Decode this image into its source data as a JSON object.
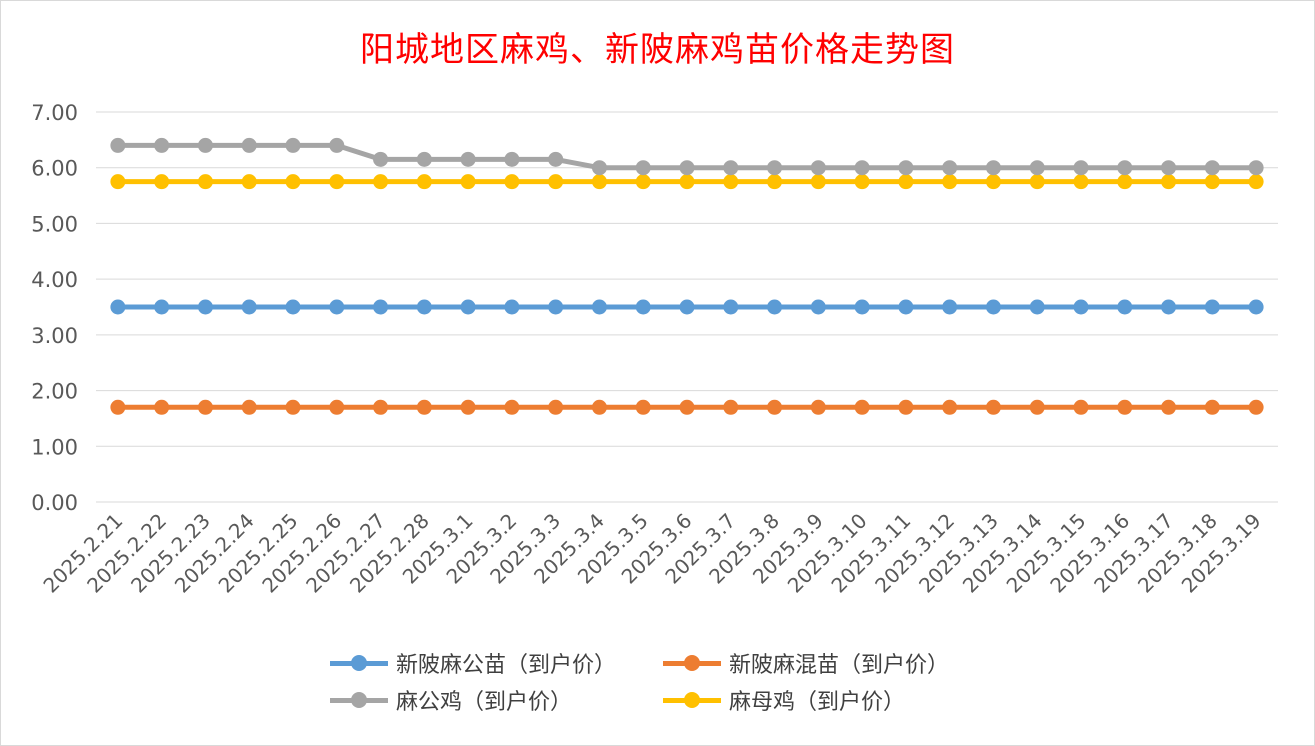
{
  "chart_data": {
    "type": "line",
    "title": "阳城地区麻鸡、新陂麻鸡苗价格走势图",
    "categories": [
      "2025.2.21",
      "2025.2.22",
      "2025.2.23",
      "2025.2.24",
      "2025.2.25",
      "2025.2.26",
      "2025.2.27",
      "2025.2.28",
      "2025.3.1",
      "2025.3.2",
      "2025.3.3",
      "2025.3.4",
      "2025.3.5",
      "2025.3.6",
      "2025.3.7",
      "2025.3.8",
      "2025.3.9",
      "2025.3.10",
      "2025.3.11",
      "2025.3.12",
      "2025.3.13",
      "2025.3.14",
      "2025.3.15",
      "2025.3.16",
      "2025.3.17",
      "2025.3.18",
      "2025.3.19"
    ],
    "yticks": [
      "0.00",
      "1.00",
      "2.00",
      "3.00",
      "4.00",
      "5.00",
      "6.00",
      "7.00"
    ],
    "ylim": [
      0,
      7
    ],
    "grid": true,
    "legend_position": "bottom",
    "series": [
      {
        "name": "新陂麻公苗（到户价）",
        "color": "#5b9bd5",
        "values": [
          3.5,
          3.5,
          3.5,
          3.5,
          3.5,
          3.5,
          3.5,
          3.5,
          3.5,
          3.5,
          3.5,
          3.5,
          3.5,
          3.5,
          3.5,
          3.5,
          3.5,
          3.5,
          3.5,
          3.5,
          3.5,
          3.5,
          3.5,
          3.5,
          3.5,
          3.5,
          3.5
        ]
      },
      {
        "name": "新陂麻混苗（到户价）",
        "color": "#ed7d31",
        "values": [
          1.7,
          1.7,
          1.7,
          1.7,
          1.7,
          1.7,
          1.7,
          1.7,
          1.7,
          1.7,
          1.7,
          1.7,
          1.7,
          1.7,
          1.7,
          1.7,
          1.7,
          1.7,
          1.7,
          1.7,
          1.7,
          1.7,
          1.7,
          1.7,
          1.7,
          1.7,
          1.7
        ]
      },
      {
        "name": "麻公鸡（到户价）",
        "color": "#a5a5a5",
        "values": [
          6.4,
          6.4,
          6.4,
          6.4,
          6.4,
          6.4,
          6.15,
          6.15,
          6.15,
          6.15,
          6.15,
          6.0,
          6.0,
          6.0,
          6.0,
          6.0,
          6.0,
          6.0,
          6.0,
          6.0,
          6.0,
          6.0,
          6.0,
          6.0,
          6.0,
          6.0,
          6.0
        ]
      },
      {
        "name": "麻母鸡（到户价）",
        "color": "#ffc000",
        "values": [
          5.75,
          5.75,
          5.75,
          5.75,
          5.75,
          5.75,
          5.75,
          5.75,
          5.75,
          5.75,
          5.75,
          5.75,
          5.75,
          5.75,
          5.75,
          5.75,
          5.75,
          5.75,
          5.75,
          5.75,
          5.75,
          5.75,
          5.75,
          5.75,
          5.75,
          5.75,
          5.75
        ]
      }
    ]
  }
}
